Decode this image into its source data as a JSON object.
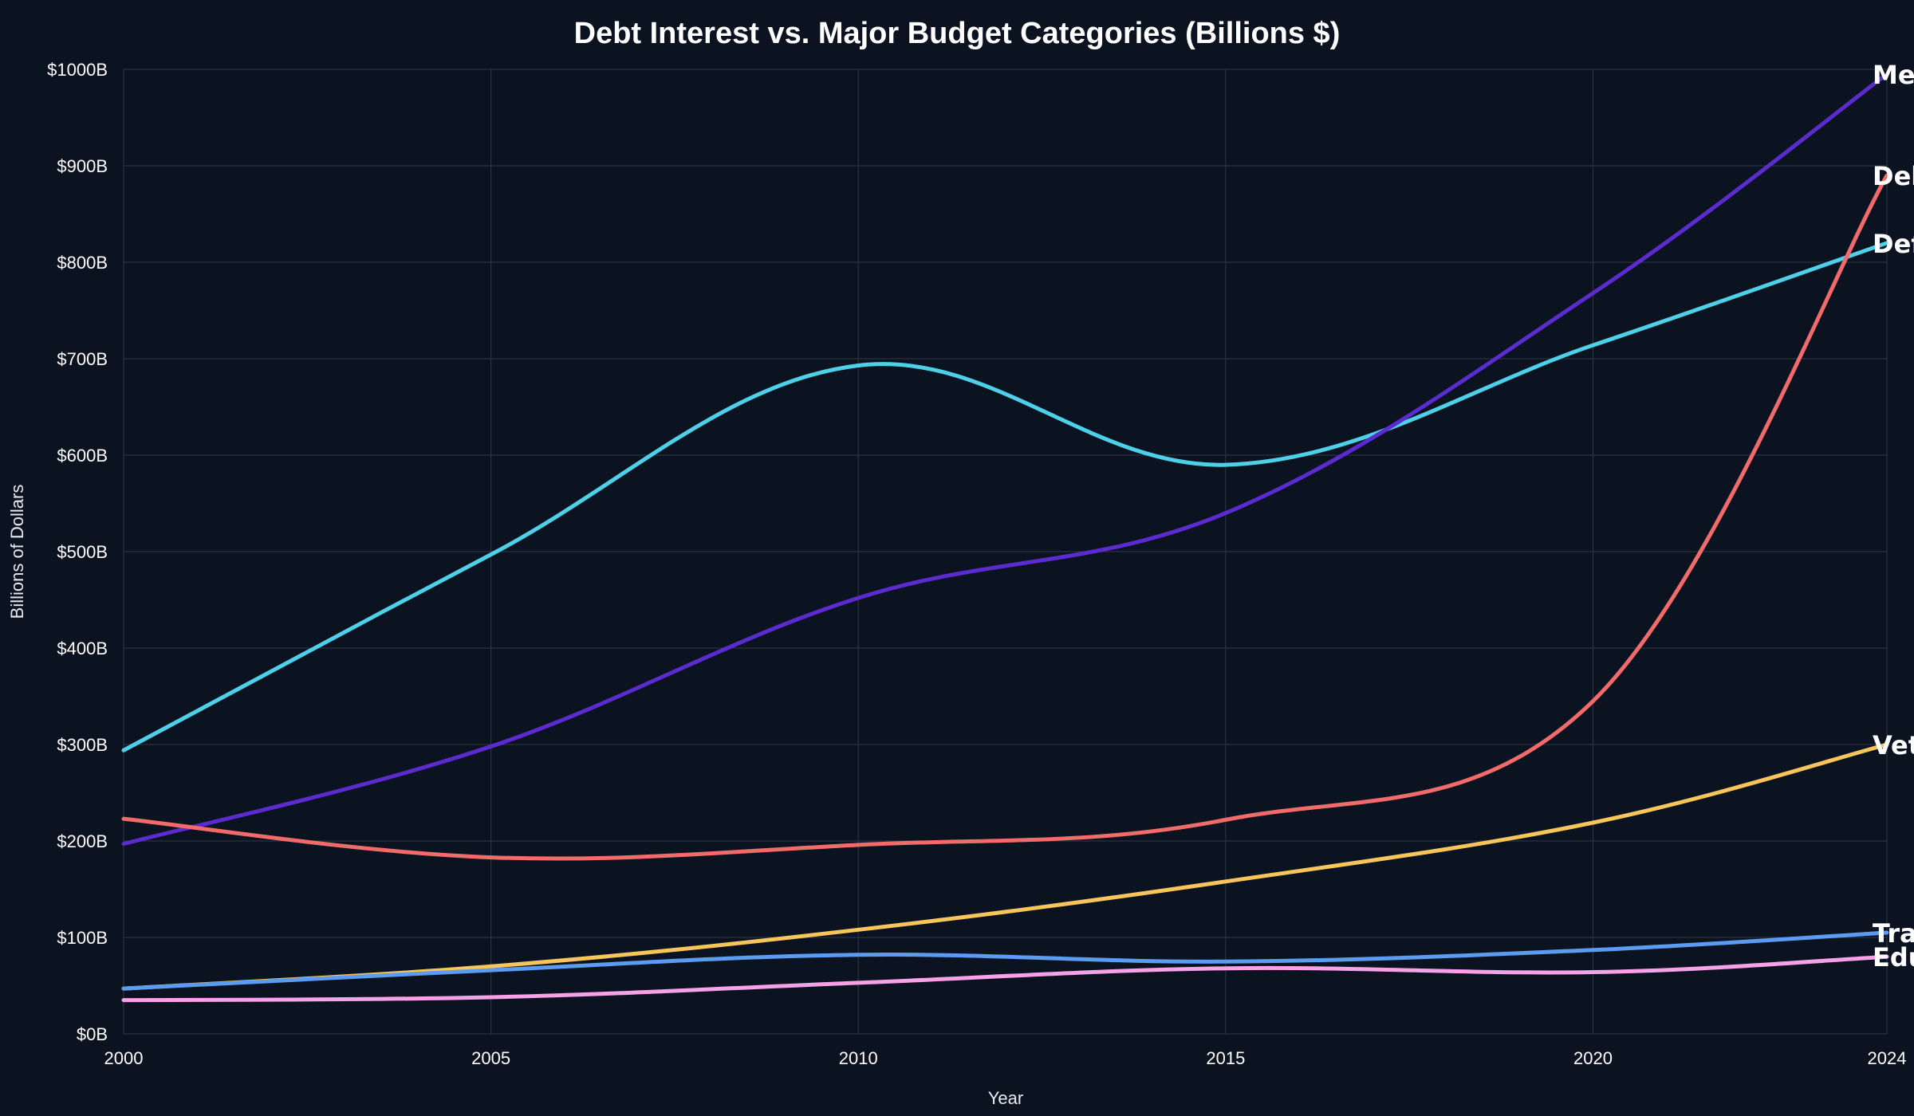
{
  "chart_data": {
    "type": "line",
    "title": "Debt Interest vs. Major Budget Categories (Billions $)",
    "xlabel": "Year",
    "ylabel": "Billions of Dollars",
    "x": [
      2000,
      2005,
      2010,
      2015,
      2020,
      2024
    ],
    "xlim": [
      2000,
      2024
    ],
    "ylim": [
      0,
      1000
    ],
    "x_ticks": [
      2000,
      2005,
      2010,
      2015,
      2020,
      2024
    ],
    "y_ticks": [
      0,
      100,
      200,
      300,
      400,
      500,
      600,
      700,
      800,
      900,
      1000
    ],
    "y_tick_labels": [
      "$0B",
      "$100B",
      "$200B",
      "$300B",
      "$400B",
      "$500B",
      "$600B",
      "$700B",
      "$800B",
      "$900B",
      "$1000B"
    ],
    "grid": true,
    "legend": "inline end labels",
    "series": [
      {
        "name": "Defense",
        "label": "Def",
        "color": "#4dd0e8",
        "values": [
          294,
          497,
          693,
          590,
          714,
          820
        ]
      },
      {
        "name": "Medicare",
        "label": "Me",
        "color": "#5b2bd0",
        "values": [
          197,
          298,
          452,
          540,
          768,
          995
        ]
      },
      {
        "name": "Debt Interest",
        "label": "Del",
        "color": "#f26b6b",
        "values": [
          223,
          183,
          196,
          222,
          345,
          890
        ]
      },
      {
        "name": "Veterans",
        "label": "Vet",
        "color": "#f7c55a",
        "values": [
          47,
          70,
          108,
          158,
          219,
          300
        ]
      },
      {
        "name": "Transportation",
        "label": "Tra",
        "color": "#5b9cf2",
        "values": [
          47,
          66,
          82,
          75,
          87,
          105
        ]
      },
      {
        "name": "Education",
        "label": "Edu",
        "color": "#f7a1e8",
        "values": [
          35,
          38,
          53,
          68,
          64,
          80
        ]
      }
    ]
  }
}
